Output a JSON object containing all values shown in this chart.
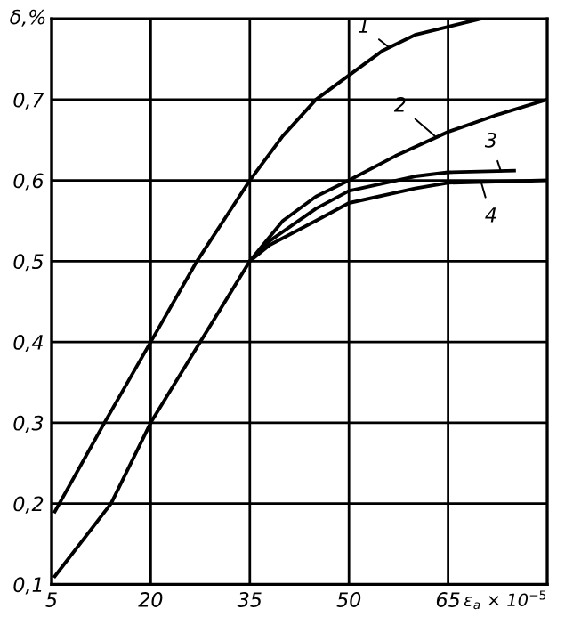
{
  "chart_data": {
    "type": "line",
    "ylabel": "δ,%",
    "xlabel": "ε$_{a}$ × 10$^{−5}$",
    "xlim": [
      5,
      80
    ],
    "ylim": [
      0.1,
      0.8
    ],
    "xticks": [
      5,
      20,
      35,
      50,
      65
    ],
    "yticks": [
      {
        "value": 0.1,
        "label": "0,1"
      },
      {
        "value": 0.2,
        "label": "0,2"
      },
      {
        "value": 0.3,
        "label": "0,3"
      },
      {
        "value": 0.4,
        "label": "0,4"
      },
      {
        "value": 0.5,
        "label": "0,5"
      },
      {
        "value": 0.6,
        "label": "0,6"
      },
      {
        "value": 0.7,
        "label": "0,7"
      }
    ],
    "grid": true,
    "marker": "none",
    "line_style": "solid",
    "series": [
      {
        "color": "#000000",
        "x": [
          5.5,
          13,
          20,
          27,
          35,
          40,
          45,
          50,
          55,
          60,
          65,
          70
        ],
        "values": [
          0.19,
          0.3,
          0.4,
          0.5,
          0.6,
          0.655,
          0.7,
          0.73,
          0.76,
          0.78,
          0.79,
          0.8
        ]
      },
      {
        "color": "#000000",
        "x": [
          5.5,
          14,
          20,
          27.5,
          35,
          40,
          45,
          50,
          57,
          65,
          72,
          80
        ],
        "values": [
          0.11,
          0.2,
          0.3,
          0.4,
          0.5,
          0.55,
          0.58,
          0.6,
          0.63,
          0.66,
          0.68,
          0.7
        ]
      },
      {
        "color": "#000000",
        "x": [
          35,
          38,
          45,
          50,
          60,
          65,
          75
        ],
        "values": [
          0.5,
          0.525,
          0.565,
          0.587,
          0.605,
          0.61,
          0.612
        ]
      },
      {
        "color": "#000000",
        "x": [
          35,
          38,
          45,
          50,
          60,
          65,
          80
        ],
        "values": [
          0.5,
          0.52,
          0.55,
          0.572,
          0.59,
          0.597,
          0.6
        ]
      }
    ],
    "annotations": [
      {
        "text": "1",
        "x": 56,
        "y": 0.765
      },
      {
        "text": "2",
        "x": 63,
        "y": 0.655
      },
      {
        "text": "3",
        "x": 73,
        "y": 0.611
      },
      {
        "text": "4",
        "x": 70,
        "y": 0.598
      }
    ]
  }
}
